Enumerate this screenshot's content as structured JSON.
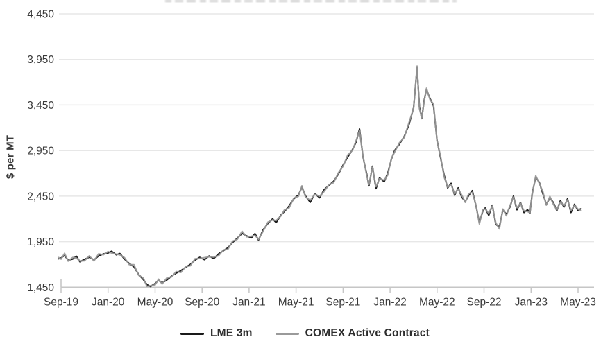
{
  "colors": {
    "grid": "#e7e7e7",
    "axis": "#c6c6c6",
    "text": "#3a3a3a",
    "lme": "#1a1a1a",
    "comex": "#9a9a9a"
  },
  "chart_data": {
    "type": "line",
    "ylabel": "$ per MT",
    "x_unit": "months since Sep-2019",
    "grid": "horizontal",
    "legend_position": "bottom-center",
    "ylim": [
      1450,
      4450
    ],
    "xlim": [
      -0.2,
      44.2
    ],
    "y_ticks": {
      "values": [
        1450,
        1950,
        2450,
        2950,
        3450,
        3950,
        4450
      ],
      "labels": [
        "1,450",
        "1,950",
        "2,450",
        "2,950",
        "3,450",
        "3,950",
        "4,450"
      ]
    },
    "x_ticks": {
      "months": [
        0,
        4,
        8,
        12,
        16,
        20,
        24,
        28,
        32,
        36,
        40,
        44
      ],
      "labels": [
        "Sep-19",
        "Jan-20",
        "May-20",
        "Sep-20",
        "Jan-21",
        "May-21",
        "Sep-21",
        "Jan-22",
        "May-22",
        "Sep-22",
        "Jan-23",
        "May-23"
      ]
    },
    "x": [
      -0.2,
      0,
      0.3,
      0.6,
      1,
      1.3,
      1.6,
      2,
      2.4,
      2.8,
      3.2,
      3.6,
      4,
      4.3,
      4.7,
      5,
      5.4,
      5.8,
      6.2,
      6.6,
      7,
      7.3,
      7.6,
      8,
      8.3,
      8.6,
      9,
      9.4,
      9.8,
      10.2,
      10.6,
      11,
      11.4,
      11.8,
      12.2,
      12.6,
      13,
      13.4,
      13.8,
      14.2,
      14.6,
      15,
      15.4,
      15.8,
      16.2,
      16.5,
      16.8,
      17.2,
      17.6,
      18,
      18.3,
      18.7,
      19,
      19.4,
      19.8,
      20.2,
      20.5,
      20.8,
      21.2,
      21.6,
      22,
      22.4,
      22.8,
      23.2,
      23.6,
      24,
      24.4,
      24.8,
      25.1,
      25.4,
      25.7,
      26,
      26.2,
      26.5,
      26.8,
      27.1,
      27.5,
      27.8,
      28.1,
      28.4,
      28.8,
      29.2,
      29.6,
      30,
      30.3,
      30.5,
      30.7,
      30.9,
      31.1,
      31.4,
      31.7,
      32,
      32.3,
      32.6,
      32.9,
      33.2,
      33.5,
      33.8,
      34.1,
      34.4,
      34.7,
      35,
      35.3,
      35.6,
      35.9,
      36.1,
      36.4,
      36.7,
      37,
      37.3,
      37.6,
      37.9,
      38.2,
      38.5,
      38.8,
      39.1,
      39.4,
      39.7,
      39.9,
      40.1,
      40.4,
      40.7,
      41,
      41.3,
      41.6,
      41.9,
      42.2,
      42.5,
      42.8,
      43.1,
      43.4,
      43.7,
      44,
      44.2
    ],
    "series": [
      {
        "name": "LME 3m",
        "color": "#1a1a1a",
        "values": [
          1762,
          1770,
          1800,
          1745,
          1760,
          1790,
          1730,
          1755,
          1780,
          1750,
          1795,
          1815,
          1825,
          1845,
          1805,
          1820,
          1760,
          1710,
          1675,
          1590,
          1535,
          1480,
          1458,
          1490,
          1525,
          1498,
          1530,
          1572,
          1605,
          1632,
          1668,
          1700,
          1748,
          1778,
          1752,
          1792,
          1765,
          1815,
          1850,
          1882,
          1942,
          1988,
          2042,
          2012,
          1992,
          2038,
          1968,
          2080,
          2150,
          2200,
          2160,
          2240,
          2280,
          2340,
          2420,
          2462,
          2548,
          2452,
          2382,
          2478,
          2432,
          2522,
          2568,
          2612,
          2692,
          2790,
          2880,
          2960,
          3040,
          3186,
          2880,
          2700,
          2562,
          2778,
          2532,
          2650,
          2608,
          2700,
          2852,
          2952,
          3022,
          3102,
          3232,
          3420,
          3860,
          3430,
          3300,
          3500,
          3620,
          3520,
          3440,
          3060,
          2870,
          2680,
          2540,
          2590,
          2460,
          2540,
          2440,
          2390,
          2460,
          2510,
          2350,
          2160,
          2290,
          2320,
          2240,
          2350,
          2140,
          2110,
          2300,
          2250,
          2330,
          2450,
          2300,
          2380,
          2270,
          2300,
          2260,
          2480,
          2660,
          2600,
          2480,
          2360,
          2430,
          2380,
          2290,
          2400,
          2330,
          2420,
          2270,
          2360,
          2290,
          2310
        ]
      },
      {
        "name": "COMEX Active Contract",
        "color": "#9a9a9a",
        "values": [
          1776,
          1758,
          1822,
          1736,
          1777,
          1770,
          1738,
          1740,
          1794,
          1738,
          1817,
          1806,
          1842,
          1825,
          1813,
          1805,
          1774,
          1698,
          1697,
          1581,
          1552,
          1460,
          1466,
          1475,
          1539,
          1486,
          1552,
          1563,
          1622,
          1612,
          1676,
          1685,
          1762,
          1766,
          1774,
          1783,
          1782,
          1795,
          1858,
          1867,
          1956,
          1976,
          2064,
          2003,
          2009,
          2018,
          1976,
          2065,
          2164,
          2188,
          2182,
          2231,
          2297,
          2320,
          2428,
          2447,
          2562,
          2440,
          2404,
          2469,
          2449,
          2502,
          2576,
          2597,
          2706,
          2778,
          2902,
          2951,
          3057,
          3166,
          2888,
          2685,
          2576,
          2766,
          2554,
          2641,
          2625,
          2680,
          2860,
          2937,
          3036,
          3090,
          3254,
          3411,
          3877,
          3410,
          3308,
          3485,
          3634,
          3508,
          3462,
          3051,
          2887,
          2660,
          2548,
          2575,
          2474,
          2528,
          2462,
          2381,
          2477,
          2490,
          2358,
          2145,
          2304,
          2308,
          2262,
          2341,
          2157,
          2090,
          2308,
          2235,
          2344,
          2438,
          2322,
          2371,
          2287,
          2280,
          2268,
          2465,
          2674,
          2588,
          2502,
          2351,
          2447,
          2360,
          2298,
          2385,
          2344,
          2408,
          2292,
          2351,
          2307,
          2290
        ]
      }
    ]
  }
}
